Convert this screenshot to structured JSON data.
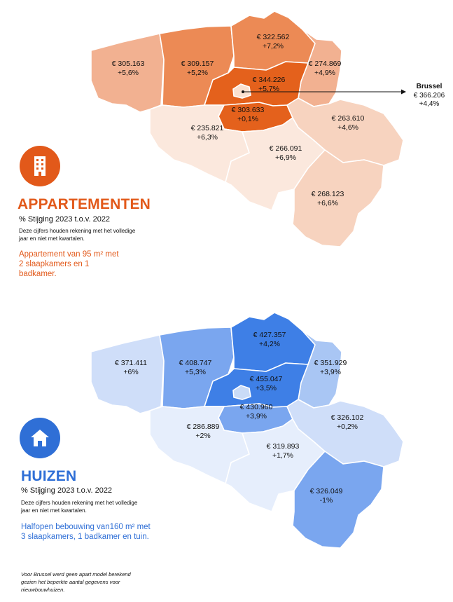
{
  "colors": {
    "orange_dark": "#e4611c",
    "orange_mid": "#ec8a55",
    "orange_light": "#f2b191",
    "orange_pale": "#f7d3bf",
    "orange_faint": "#fbe8dd",
    "orange_brussels": "#fbe0cf",
    "blue_dark": "#3e7fe6",
    "blue_mid": "#7aa6ef",
    "blue_light": "#a9c6f4",
    "blue_pale": "#cfdef9",
    "blue_faint": "#e6eefc",
    "blue_brussels": "#c9dbf7",
    "accent_orange": "#e2591a",
    "accent_blue": "#2f6fd6"
  },
  "appartementen": {
    "title": "APPARTEMENTEN",
    "icon": "apartment-building-icon",
    "subtitle": "% Stijging 2023 t.o.v. 2022",
    "note": "Deze cijfers houden rekening met het volledige jaar en niet met kwartalen.",
    "spec": "Appartement van 95 m² met 2 slaapkamers en 1 badkamer.",
    "brussels": {
      "name": "Brussel",
      "price": "€ 366.206",
      "change": "+4,4%"
    },
    "provinces": [
      {
        "id": "west-vlaanderen",
        "price": "€ 305.163",
        "change": "+5,6%",
        "shade": "orange_light"
      },
      {
        "id": "oost-vlaanderen",
        "price": "€ 309.157",
        "change": "+5,2%",
        "shade": "orange_mid"
      },
      {
        "id": "antwerpen",
        "price": "€ 322.562",
        "change": "+7,2%",
        "shade": "orange_mid"
      },
      {
        "id": "limburg",
        "price": "€ 274.869",
        "change": "+4,9%",
        "shade": "orange_light"
      },
      {
        "id": "vlaams-brabant",
        "price": "€ 344.226",
        "change": "+5,7%",
        "shade": "orange_dark"
      },
      {
        "id": "waals-brabant",
        "price": "€ 303.633",
        "change": "+0,1%",
        "shade": "orange_dark"
      },
      {
        "id": "henegouwen",
        "price": "€ 235.821",
        "change": "+6,3%",
        "shade": "orange_faint"
      },
      {
        "id": "namen",
        "price": "€ 266.091",
        "change": "+6,9%",
        "shade": "orange_faint"
      },
      {
        "id": "luik",
        "price": "€ 263.610",
        "change": "+4,6%",
        "shade": "orange_pale"
      },
      {
        "id": "luxemburg",
        "price": "€ 268.123",
        "change": "+6,6%",
        "shade": "orange_pale"
      }
    ]
  },
  "huizen": {
    "title": "HUIZEN",
    "icon": "house-icon",
    "subtitle": "% Stijging 2023 t.o.v. 2022",
    "note": "Deze cijfers houden rekening met het volledige jaar en niet met kwartalen.",
    "spec": "Halfopen bebouwing van160 m² met 3 slaapkamers, 1 badkamer en tuin.",
    "footnote": "Voor Brussel werd geen apart model berekend gezien het beperkte aantal gegevens voor nieuwbouwhuizen.",
    "provinces": [
      {
        "id": "west-vlaanderen",
        "price": "€ 371.411",
        "change": "+6%",
        "shade": "blue_pale"
      },
      {
        "id": "oost-vlaanderen",
        "price": "€ 408.747",
        "change": "+5,3%",
        "shade": "blue_mid"
      },
      {
        "id": "antwerpen",
        "price": "€ 427.357",
        "change": "+4,2%",
        "shade": "blue_dark"
      },
      {
        "id": "limburg",
        "price": "€ 351.929",
        "change": "+3,9%",
        "shade": "blue_light"
      },
      {
        "id": "vlaams-brabant",
        "price": "€ 455.047",
        "change": "+3,5%",
        "shade": "blue_dark"
      },
      {
        "id": "waals-brabant",
        "price": "€ 430.960",
        "change": "+3,9%",
        "shade": "blue_mid"
      },
      {
        "id": "henegouwen",
        "price": "€ 286.889",
        "change": "+2%",
        "shade": "blue_faint"
      },
      {
        "id": "namen",
        "price": "€ 319.893",
        "change": "+1,7%",
        "shade": "blue_faint"
      },
      {
        "id": "luik",
        "price": "€ 326.102",
        "change": "+0,2%",
        "shade": "blue_pale"
      },
      {
        "id": "luxemburg",
        "price": "€ 326.049",
        "change": "-1%",
        "shade": "blue_mid"
      }
    ]
  }
}
